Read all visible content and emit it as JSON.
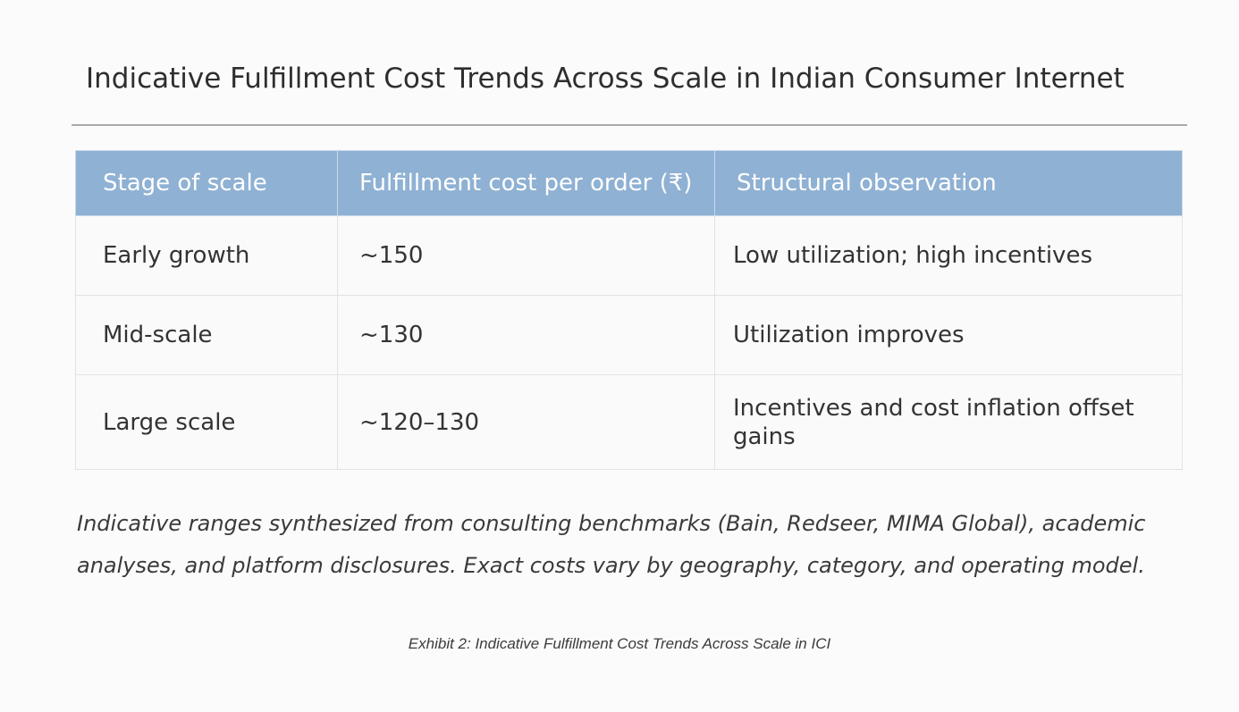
{
  "document": {
    "title": "Indicative Fulfillment Cost Trends Across Scale in Indian Consumer Internet",
    "table": {
      "columns": [
        "Stage of scale",
        "Fulfillment cost per order (₹)",
        "Structural observation"
      ],
      "rows": [
        {
          "stage": "Early growth",
          "cost": "~150",
          "observation": "Low utilization; high incentives"
        },
        {
          "stage": "Mid-scale",
          "cost": "~130",
          "observation": "Utilization improves"
        },
        {
          "stage": "Large scale",
          "cost": "~120–130",
          "observation": "Incentives and cost inflation offset gains"
        }
      ]
    },
    "note": "Indicative ranges synthesized from consulting benchmarks (Bain, Redseer, MIMA Global), academic analyses, and platform disclosures. Exact costs vary by geography, category, and operating model.",
    "caption": "Exhibit 2: Indicative Fulfillment Cost Trends Across Scale in ICI"
  },
  "colors": {
    "header_background": "#8fb1d3",
    "header_text": "#ffffff",
    "rule": "#a9a9a9",
    "grid": "#e2e2e2"
  }
}
